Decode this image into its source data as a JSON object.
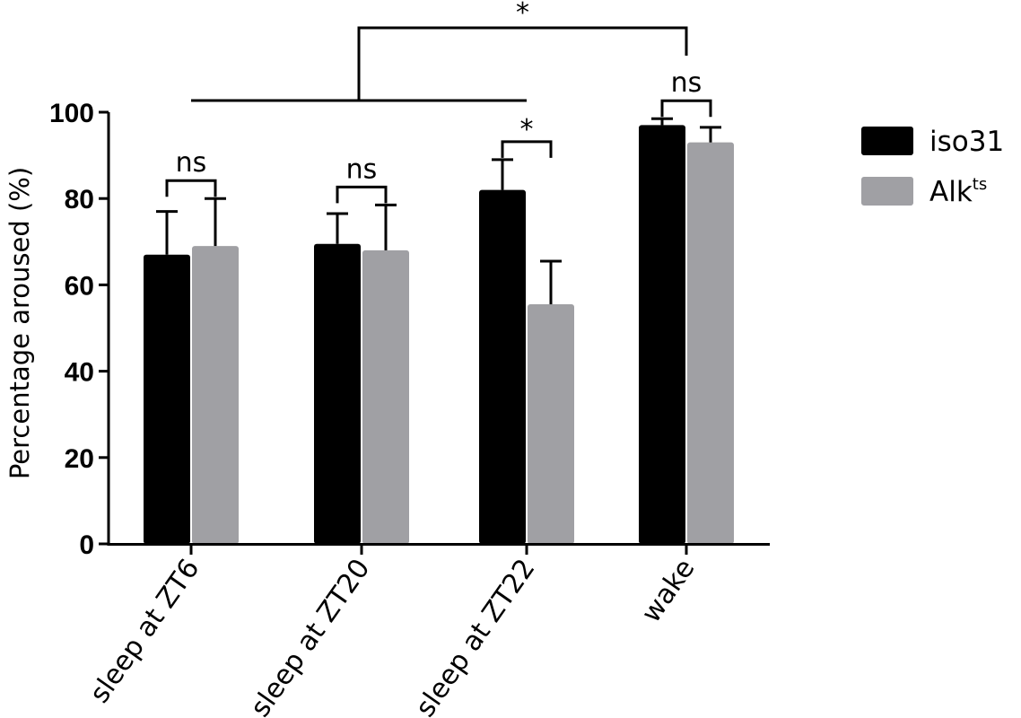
{
  "chart_data": {
    "type": "bar",
    "title": "",
    "xlabel": "",
    "ylabel": "Percentage aroused (%)",
    "ylim": [
      0,
      100
    ],
    "yticks": [
      "0",
      "20",
      "40",
      "60",
      "80",
      "100"
    ],
    "categories": [
      "sleep at ZT6",
      "sleep at ZT20",
      "sleep at ZT22",
      "wake"
    ],
    "series": [
      {
        "name": "iso31",
        "values": [
          67,
          69.5,
          82,
          97
        ],
        "errors": [
          10,
          7,
          7,
          1.5
        ],
        "color": "#000000"
      },
      {
        "name": "Alk",
        "name_superscript": "ts",
        "values": [
          69,
          68,
          55.5,
          93
        ],
        "errors": [
          11,
          10.5,
          10,
          3.5
        ],
        "color": "#a0a0a4"
      }
    ],
    "legend_position": "top-right",
    "grid": false,
    "significance": [
      {
        "label": "ns",
        "type": "within",
        "category": 0
      },
      {
        "label": "ns",
        "type": "within",
        "category": 1
      },
      {
        "label": "*",
        "type": "within",
        "category": 2
      },
      {
        "label": "ns",
        "type": "within",
        "category": 3
      },
      {
        "label": "*",
        "type": "between",
        "from_categories": [
          0,
          2
        ],
        "to_category": 3
      }
    ]
  }
}
